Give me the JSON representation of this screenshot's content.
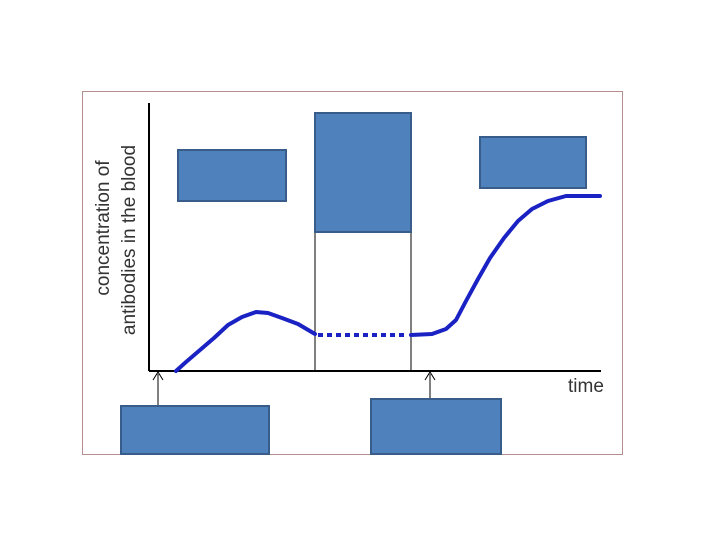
{
  "figure": {
    "ylabel_line1": "concentration of",
    "ylabel_line2": "antibodies in the blood",
    "xlabel": "time"
  },
  "colors": {
    "frame_border": "#b58f8f",
    "axis": "#000000",
    "curve": "#1a22c4",
    "label_box_fill": "#4f81bd",
    "label_box_border": "#385d8a",
    "text": "#333333"
  },
  "label_boxes": [
    {
      "id": "box-top-left",
      "text": ""
    },
    {
      "id": "box-top-middle",
      "text": ""
    },
    {
      "id": "box-top-right",
      "text": ""
    },
    {
      "id": "box-bottom-left",
      "text": ""
    },
    {
      "id": "box-bottom-right",
      "text": ""
    }
  ],
  "curve": {
    "primary_response": "solid",
    "decline_interval": "dotted",
    "secondary_response": "solid"
  }
}
